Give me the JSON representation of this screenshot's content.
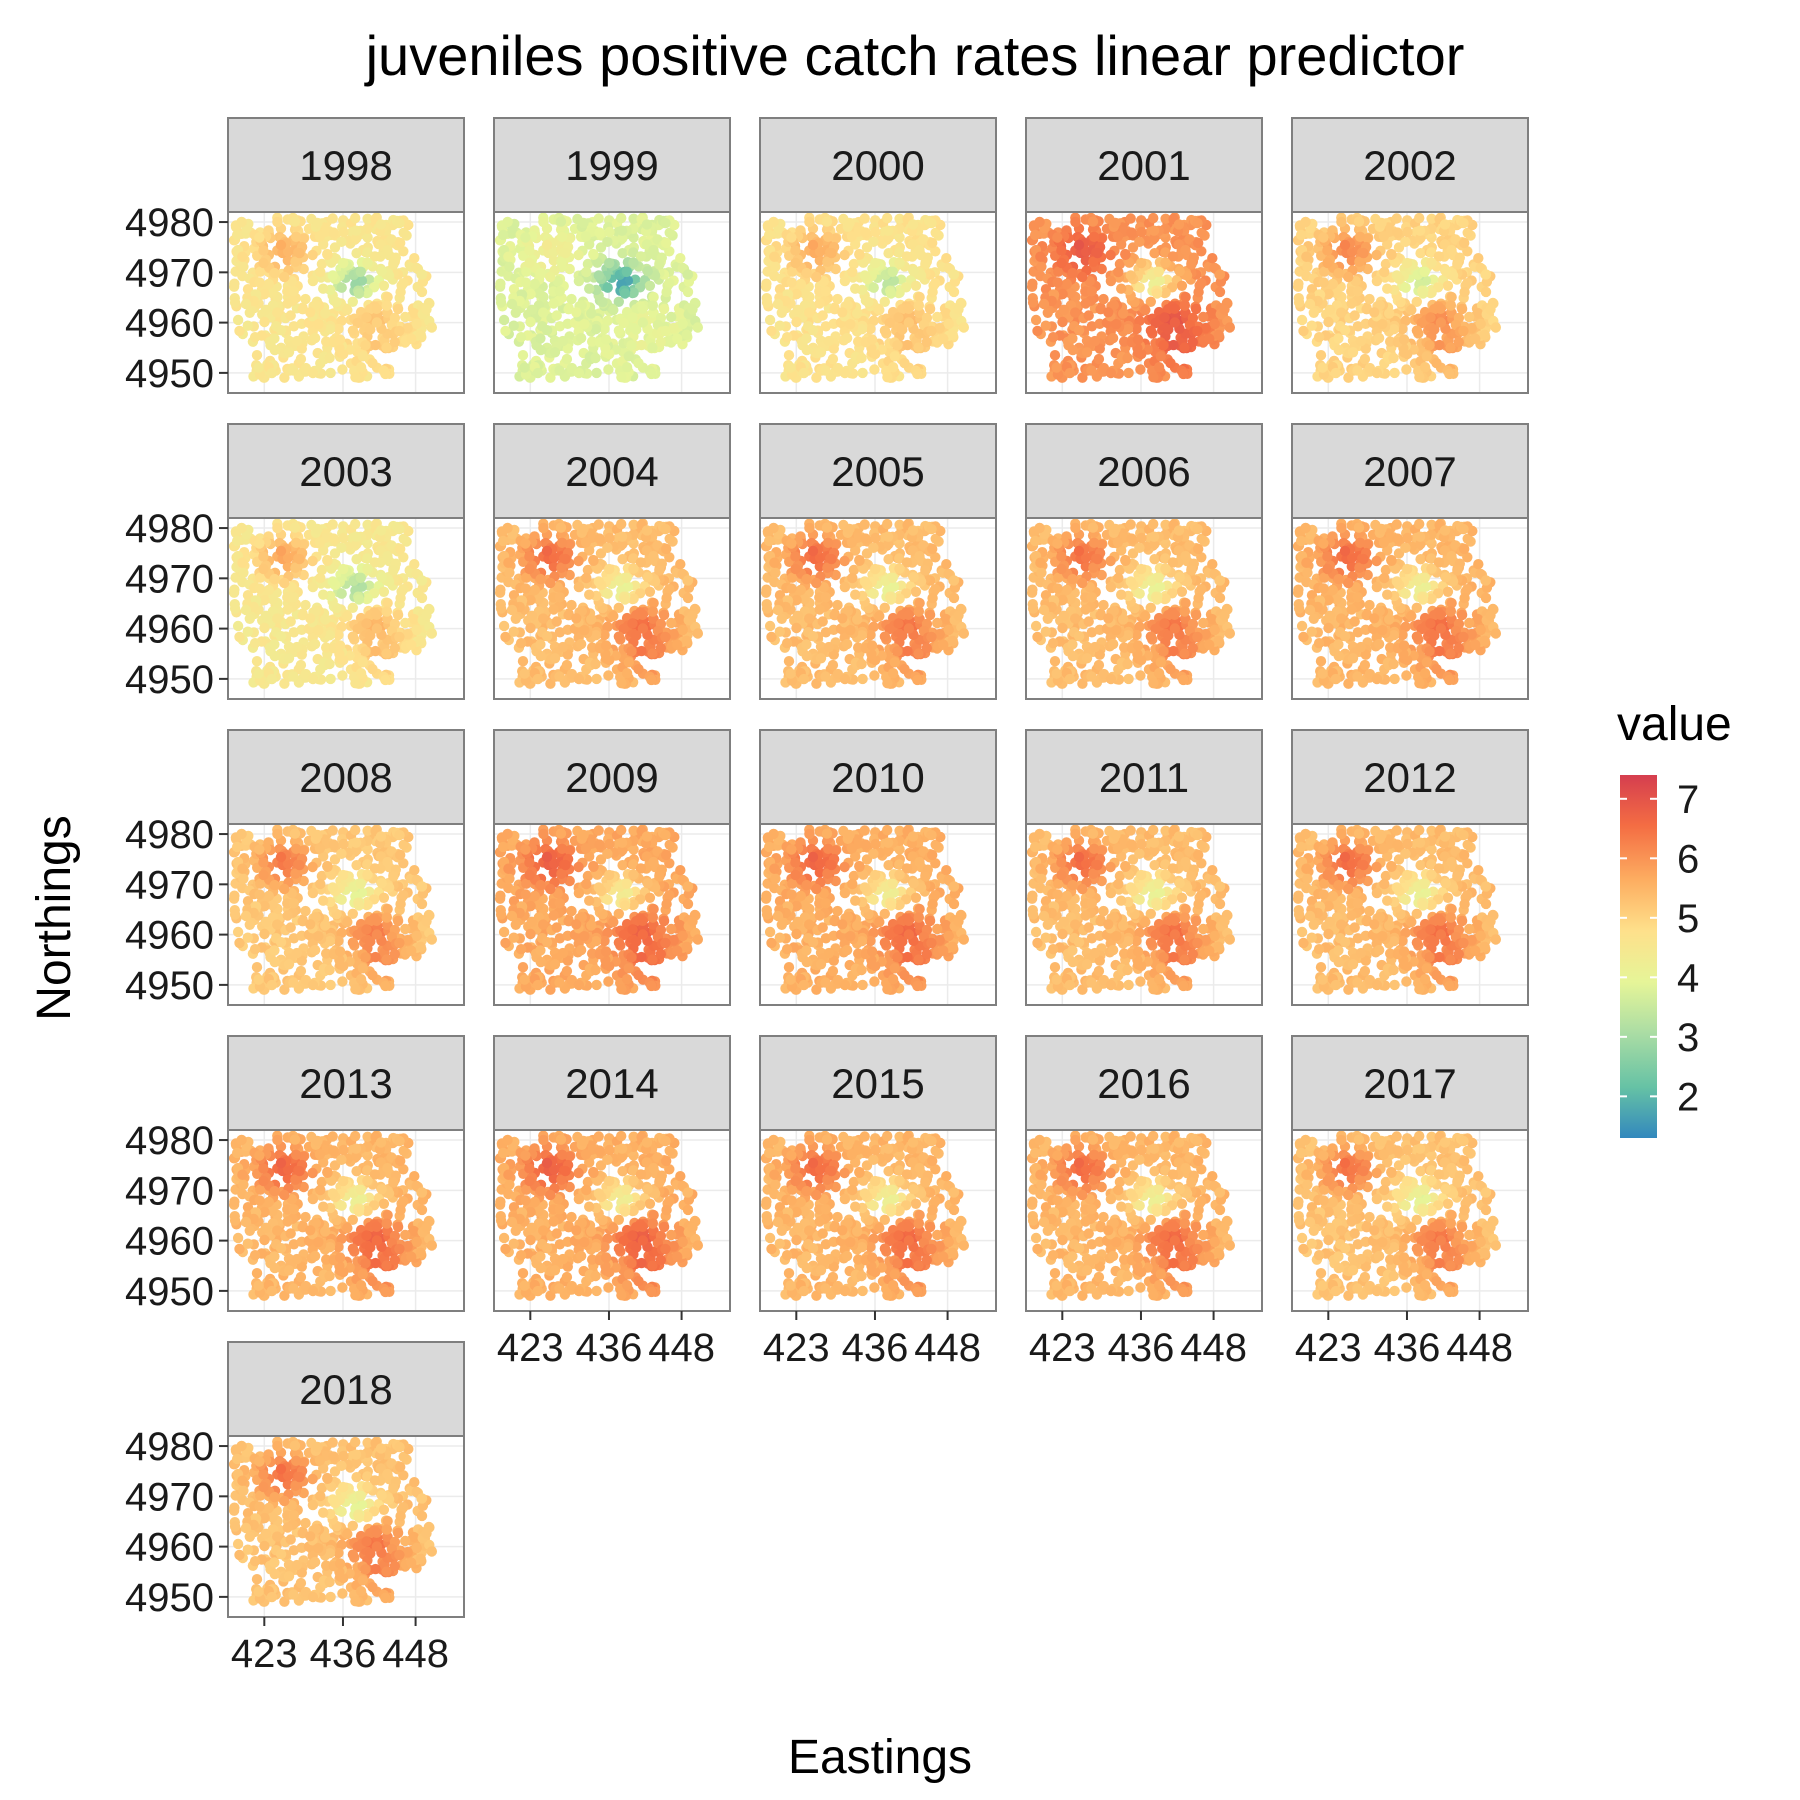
{
  "chart_data": {
    "type": "heatmap",
    "title": "juveniles positive catch rates linear predictor",
    "xlabel": "Eastings",
    "ylabel": "Northings",
    "facet_labels": [
      "1998",
      "1999",
      "2000",
      "2001",
      "2002",
      "2003",
      "2004",
      "2005",
      "2006",
      "2007",
      "2008",
      "2009",
      "2010",
      "2011",
      "2012",
      "2013",
      "2014",
      "2015",
      "2016",
      "2017",
      "2018"
    ],
    "x_ticks": [
      423,
      436,
      448
    ],
    "y_ticks": [
      4950,
      4960,
      4970,
      4980
    ],
    "xlim": [
      417,
      456
    ],
    "ylim": [
      4946,
      4982
    ],
    "grid": true,
    "legend": {
      "title": "value",
      "position": "right",
      "breaks": [
        2,
        3,
        4,
        5,
        6,
        7
      ],
      "range": [
        1.3,
        7.4
      ],
      "palette": [
        "#3288bd",
        "#66c2a5",
        "#abdda4",
        "#e6f598",
        "#fee08b",
        "#fdae61",
        "#f46d43",
        "#d53e4f"
      ]
    },
    "series": [
      {
        "year": "1998",
        "base": 4.6,
        "hotspot_high": 5.6,
        "hotspot_low": 2.7,
        "east_high": 5.3
      },
      {
        "year": "1999",
        "base": 3.8,
        "hotspot_high": 4.3,
        "hotspot_low": 1.6,
        "east_high": 4.0
      },
      {
        "year": "2000",
        "base": 4.7,
        "hotspot_high": 5.7,
        "hotspot_low": 3.2,
        "east_high": 5.4
      },
      {
        "year": "2001",
        "base": 6.0,
        "hotspot_high": 6.9,
        "hotspot_low": 4.0,
        "east_high": 7.0
      },
      {
        "year": "2002",
        "base": 5.0,
        "hotspot_high": 6.2,
        "hotspot_low": 3.5,
        "east_high": 6.2
      },
      {
        "year": "2003",
        "base": 4.5,
        "hotspot_high": 5.8,
        "hotspot_low": 3.0,
        "east_high": 5.6
      },
      {
        "year": "2004",
        "base": 5.4,
        "hotspot_high": 6.6,
        "hotspot_low": 3.9,
        "east_high": 6.6
      },
      {
        "year": "2005",
        "base": 5.4,
        "hotspot_high": 6.6,
        "hotspot_low": 3.9,
        "east_high": 6.5
      },
      {
        "year": "2006",
        "base": 5.4,
        "hotspot_high": 6.5,
        "hotspot_low": 3.9,
        "east_high": 6.5
      },
      {
        "year": "2007",
        "base": 5.5,
        "hotspot_high": 6.6,
        "hotspot_low": 4.0,
        "east_high": 6.6
      },
      {
        "year": "2008",
        "base": 5.2,
        "hotspot_high": 6.4,
        "hotspot_low": 3.8,
        "east_high": 6.4
      },
      {
        "year": "2009",
        "base": 5.7,
        "hotspot_high": 6.8,
        "hotspot_low": 4.2,
        "east_high": 6.8
      },
      {
        "year": "2010",
        "base": 5.6,
        "hotspot_high": 6.7,
        "hotspot_low": 4.1,
        "east_high": 6.7
      },
      {
        "year": "2011",
        "base": 5.4,
        "hotspot_high": 6.6,
        "hotspot_low": 3.9,
        "east_high": 6.6
      },
      {
        "year": "2012",
        "base": 5.4,
        "hotspot_high": 6.6,
        "hotspot_low": 3.9,
        "east_high": 6.6
      },
      {
        "year": "2013",
        "base": 5.5,
        "hotspot_high": 6.7,
        "hotspot_low": 4.0,
        "east_high": 6.8
      },
      {
        "year": "2014",
        "base": 5.6,
        "hotspot_high": 6.8,
        "hotspot_low": 4.1,
        "east_high": 6.9
      },
      {
        "year": "2015",
        "base": 5.5,
        "hotspot_high": 6.6,
        "hotspot_low": 4.0,
        "east_high": 6.7
      },
      {
        "year": "2016",
        "base": 5.5,
        "hotspot_high": 6.6,
        "hotspot_low": 4.0,
        "east_high": 6.7
      },
      {
        "year": "2017",
        "base": 5.3,
        "hotspot_high": 6.5,
        "hotspot_low": 3.8,
        "east_high": 6.5
      },
      {
        "year": "2018",
        "base": 5.3,
        "hotspot_high": 6.5,
        "hotspot_low": 3.8,
        "east_high": 6.5
      }
    ]
  }
}
